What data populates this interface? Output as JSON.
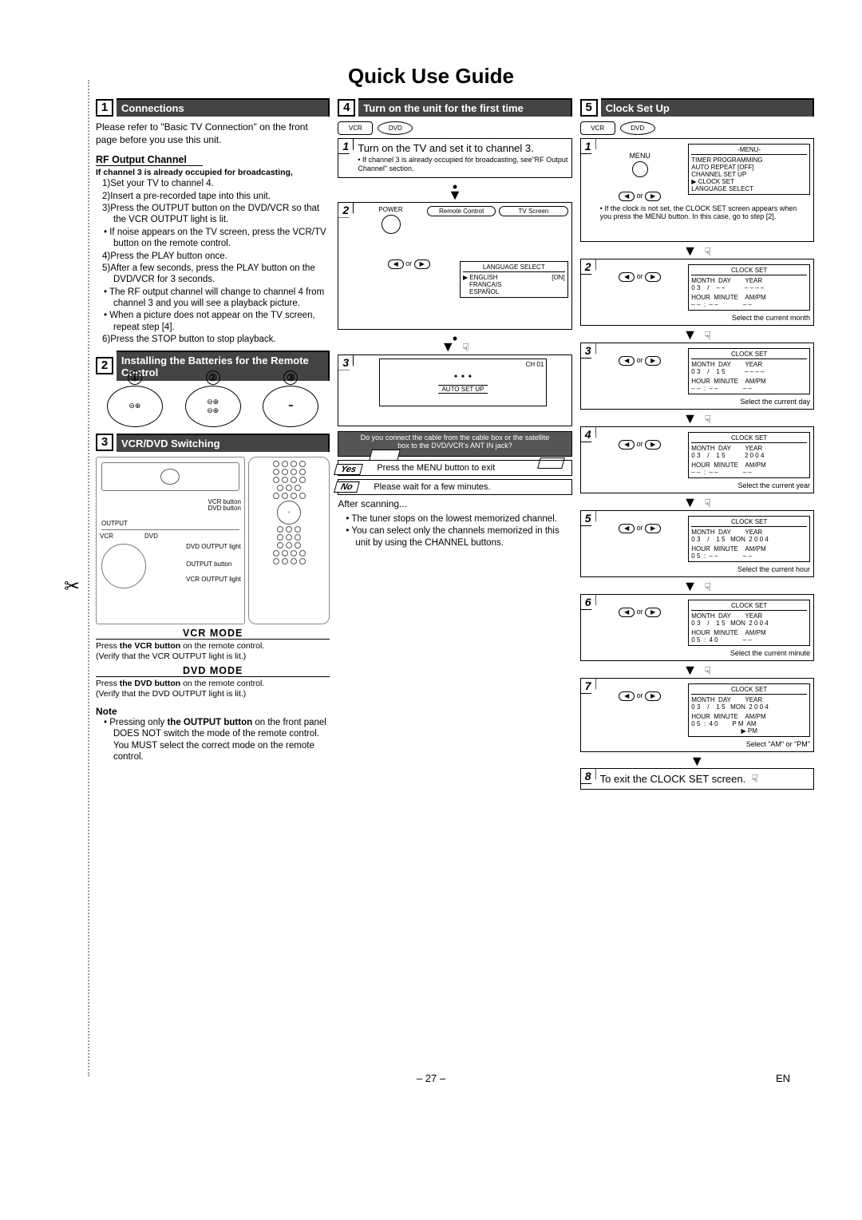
{
  "page": {
    "title": "Quick Use Guide",
    "number": "– 27 –",
    "lang": "EN"
  },
  "s1": {
    "num": "1",
    "title": "Connections",
    "intro": "Please refer to \"Basic TV Connection\" on the front page before you use this unit.",
    "rf_head": "RF Output Channel",
    "rf_cond": "If channel 3 is already occupied for broadcasting,",
    "steps": [
      "1)Set your TV to channel 4.",
      "2)Insert a pre-recorded tape into this unit.",
      "3)Press the OUTPUT button on the DVD/VCR so that the VCR OUTPUT light is lit."
    ],
    "b1": "If noise appears on the TV screen, press the VCR/TV button on the remote control.",
    "s4": "4)Press the PLAY button once.",
    "s5": "5)After a few seconds, press the PLAY button on the DVD/VCR for 3 seconds.",
    "b2": "The RF output channel will change to channel 4 from channel 3 and you will see a playback picture.",
    "b3": "When a picture does not appear on the TV screen, repeat step [4].",
    "s6": "6)Press the STOP button to stop playback."
  },
  "s2": {
    "num": "2",
    "title": "Installing the Batteries for the Remote Control",
    "labels": [
      "①",
      "②",
      "③"
    ]
  },
  "s3": {
    "num": "3",
    "title": "VCR/DVD Switching",
    "labels": {
      "vcr_btn": "VCR button",
      "dvd_btn": "DVD button",
      "output": "OUTPUT",
      "vcr": "VCR",
      "dvd": "DVD",
      "dvd_out": "DVD OUTPUT light",
      "out_btn": "OUTPUT button",
      "vcr_out": "VCR OUTPUT light"
    },
    "vcr_mode": {
      "head": "VCR MODE",
      "l1a": "Press ",
      "l1b": "the VCR button",
      "l1c": " on the remote control.",
      "l2": "(Verify that the VCR OUTPUT light is lit.)"
    },
    "dvd_mode": {
      "head": "DVD MODE",
      "l1a": "Press ",
      "l1b": "the DVD button",
      "l1c": " on the remote control.",
      "l2": "(Verify that the DVD OUTPUT light is lit.)"
    },
    "note_head": "Note",
    "note1a": "Pressing only ",
    "note1b": "the OUTPUT button",
    "note1c": " on the front panel DOES NOT switch the mode of the remote control. You MUST select the correct mode on the remote control."
  },
  "s4": {
    "num": "4",
    "title": "Turn on the unit for the first time",
    "dev": {
      "vcr": "VCR",
      "dvd": "DVD"
    },
    "step1": {
      "n": "1",
      "text": "Turn on the TV and set it to channel 3.",
      "note": "If channel 3 is already occupied for broadcasting, see\"RF Output Channel\" section."
    },
    "step2": {
      "n": "2",
      "power": "POWER",
      "remote": "Remote Control",
      "tv": "TV Screen",
      "btns": "or",
      "menu_title": "LANGUAGE SELECT",
      "m1a": "ENGLISH",
      "m1b": "[ON]",
      "m2": "FRANCAIS",
      "m3": "ESPAÑOL"
    },
    "step3": {
      "n": "3",
      "ch": "CH 01",
      "auto": "AUTO SET UP"
    },
    "q": {
      "text": "Do you connect the cable from the cable box or the satellite box to the DVD/VCR's ANT IN jack?",
      "yes": "YES",
      "no": "NO"
    },
    "yes": {
      "label": "Yes",
      "text": "Press the MENU button to exit"
    },
    "no": {
      "label": "No",
      "text": "Please wait for a few minutes."
    },
    "after": "After scanning...",
    "b1": "The tuner stops on the lowest memorized channel.",
    "b2": "You can select only the channels memorized in this unit by using the CHANNEL buttons."
  },
  "s5": {
    "num": "5",
    "title": "Clock Set Up",
    "dev": {
      "vcr": "VCR",
      "dvd": "DVD"
    },
    "step1": {
      "n": "1",
      "menu": "MENU",
      "box_title": "-MENU-",
      "items": [
        "TIMER PROGRAMMING",
        "AUTO REPEAT   [OFF]",
        "CHANNEL SET UP",
        "CLOCK SET",
        "LANGUAGE SELECT"
      ],
      "note": "If the clock is not set, the CLOCK SET screen appears when you press the MENU button. In this case, go to step [2].",
      "or": "or"
    },
    "clock_box_title": "CLOCK SET",
    "header_row": "MONTH  DAY        YEAR",
    "hr_row": "HOUR  MINUTE    AM/PM",
    "or": "or",
    "step2": {
      "n": "2",
      "row1": "0 3    /    – –           – – – –",
      "row2": "– –  :  – –              – –",
      "cap": "Select the current month"
    },
    "step3": {
      "n": "3",
      "row1": "0 3    /    1 5           – – – –",
      "row2": "– –  :  – –              – –",
      "cap": "Select the current day"
    },
    "step4": {
      "n": "4",
      "row1": "0 3    /    1 5           2 0 0 4",
      "row2": "– –  :  – –              – –",
      "cap": "Select the current year"
    },
    "step5": {
      "n": "5",
      "row1": "0 3    /    1 5   MON  2 0 0 4",
      "row2": "0 5  :  – –              – –",
      "cap": "Select the current hour"
    },
    "step6": {
      "n": "6",
      "row1": "0 3    /    1 5   MON  2 0 0 4",
      "row2": "0 5  :  4 0              – –",
      "cap": "Select the current minute"
    },
    "step7": {
      "n": "7",
      "row1": "0 3    /    1 5   MON  2 0 0 4",
      "row2": "0 5  :  4 0          ▶ AM\n                            ▶ PM",
      "row2a": "0 5  :  4 0        P M  AM",
      "row2b": "                            ▶ PM",
      "cap": "Select \"AM\" or \"PM\""
    },
    "step8": {
      "n": "8",
      "text": "To exit the CLOCK SET screen."
    }
  }
}
